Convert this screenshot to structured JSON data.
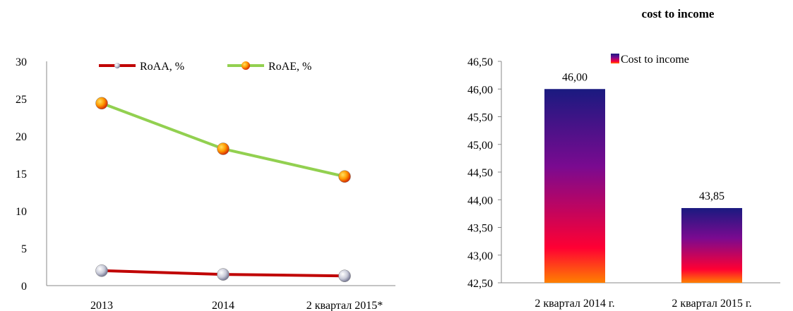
{
  "chart_data": [
    {
      "type": "line",
      "title": "",
      "categories": [
        "2013",
        "2014",
        "2 квартал 2015*"
      ],
      "series": [
        {
          "name": "RoAA, %",
          "values": [
            2.0,
            1.5,
            1.3
          ],
          "color": "#c00000",
          "marker_color": "#c8c8d8"
        },
        {
          "name": "RoAE, %",
          "values": [
            24.4,
            18.3,
            14.6
          ],
          "color": "#92d050",
          "marker_color": "#ff9900"
        }
      ],
      "ylim": [
        0,
        30
      ],
      "yticks": [
        "0",
        "5",
        "10",
        "15",
        "20",
        "25",
        "30"
      ],
      "legend": "top",
      "grid": false
    },
    {
      "type": "bar",
      "title": "cost to income",
      "categories": [
        "2 квартал 2014 г.",
        "2 квартал 2015 г."
      ],
      "series": [
        {
          "name": "Cost to income",
          "values": [
            46.0,
            43.85
          ]
        }
      ],
      "data_labels": [
        "46,00",
        "43,85"
      ],
      "ylim": [
        42.5,
        46.5
      ],
      "yticks": [
        "42,50",
        "43,00",
        "43,50",
        "44,00",
        "44,50",
        "45,00",
        "45,50",
        "46,00",
        "46,50"
      ],
      "gradient": [
        "#1a1a80",
        "#7a0a90",
        "#ff0033",
        "#ff8000"
      ],
      "legend": "top",
      "grid": false
    }
  ]
}
